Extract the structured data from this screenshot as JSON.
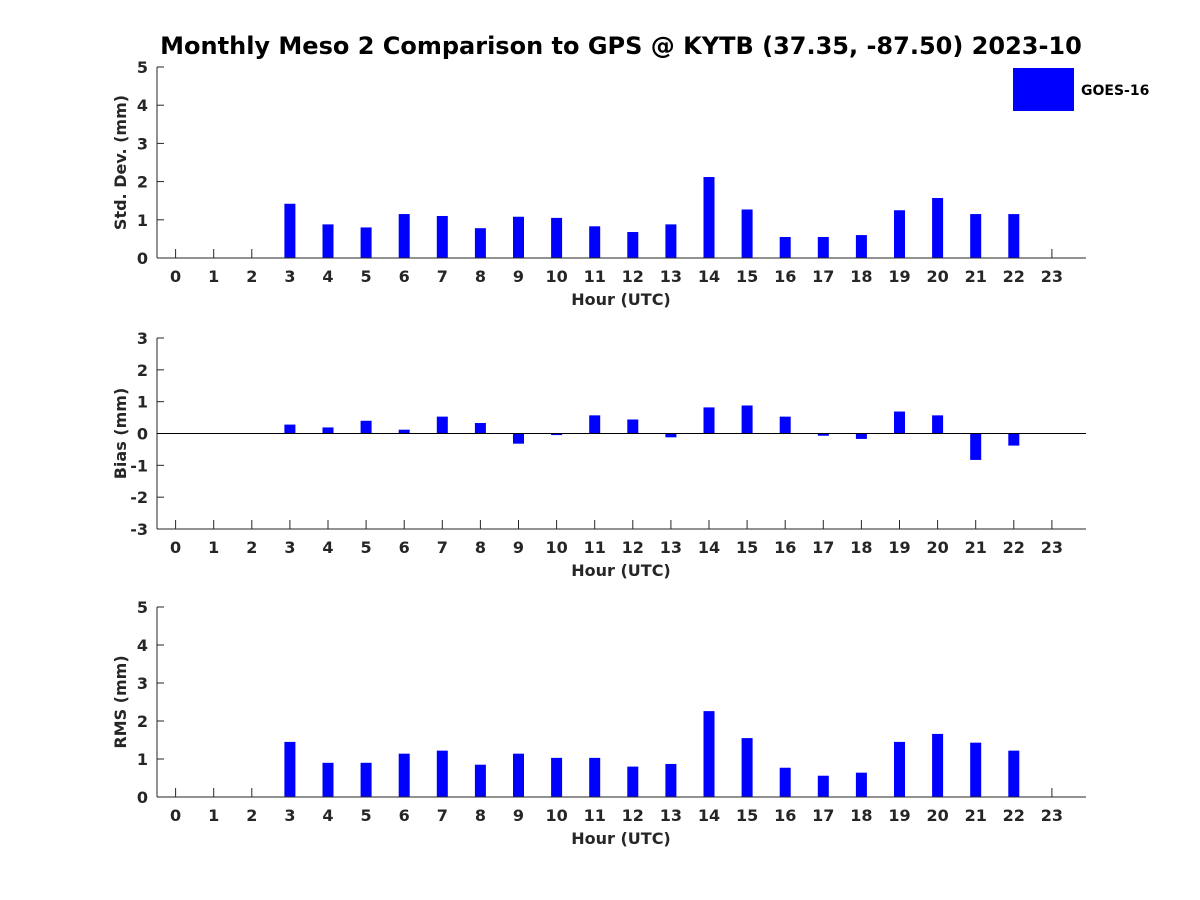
{
  "title": "Monthly Meso 2 Comparison to GPS @ KYTB (37.35, -87.50) 2023-10",
  "legend": {
    "label": "GOES-16",
    "color": "#0000ff"
  },
  "chart_data": [
    {
      "type": "bar",
      "panel": "std",
      "ylabel": "Std. Dev. (mm)",
      "xlabel": "Hour (UTC)",
      "ylim": [
        0,
        5
      ],
      "yticks": [
        "0",
        "1",
        "2",
        "3",
        "4",
        "5"
      ],
      "categories": [
        "0",
        "1",
        "2",
        "3",
        "4",
        "5",
        "6",
        "7",
        "8",
        "9",
        "10",
        "11",
        "12",
        "13",
        "14",
        "15",
        "16",
        "17",
        "18",
        "19",
        "20",
        "21",
        "22",
        "23"
      ],
      "series": [
        {
          "name": "GOES-16",
          "values": [
            null,
            null,
            null,
            1.42,
            0.88,
            0.8,
            1.15,
            1.1,
            0.78,
            1.08,
            1.05,
            0.83,
            0.68,
            0.88,
            2.12,
            1.27,
            0.55,
            0.55,
            0.6,
            1.25,
            1.57,
            1.15,
            1.15,
            null
          ]
        }
      ]
    },
    {
      "type": "bar",
      "panel": "bias",
      "ylabel": "Bias (mm)",
      "xlabel": "Hour (UTC)",
      "ylim": [
        -3,
        3
      ],
      "yticks": [
        "-3",
        "-2",
        "-1",
        "0",
        "1",
        "2",
        "3"
      ],
      "categories": [
        "0",
        "1",
        "2",
        "3",
        "4",
        "5",
        "6",
        "7",
        "8",
        "9",
        "10",
        "11",
        "12",
        "13",
        "14",
        "15",
        "16",
        "17",
        "18",
        "19",
        "20",
        "21",
        "22",
        "23"
      ],
      "series": [
        {
          "name": "GOES-16",
          "values": [
            null,
            null,
            null,
            0.28,
            0.19,
            0.4,
            0.12,
            0.53,
            0.33,
            -0.32,
            -0.05,
            0.57,
            0.44,
            -0.12,
            0.82,
            0.88,
            0.53,
            -0.07,
            -0.17,
            0.69,
            0.57,
            -0.83,
            -0.38,
            null
          ]
        }
      ]
    },
    {
      "type": "bar",
      "panel": "rms",
      "ylabel": "RMS (mm)",
      "xlabel": "Hour (UTC)",
      "ylim": [
        0,
        5
      ],
      "yticks": [
        "0",
        "1",
        "2",
        "3",
        "4",
        "5"
      ],
      "categories": [
        "0",
        "1",
        "2",
        "3",
        "4",
        "5",
        "6",
        "7",
        "8",
        "9",
        "10",
        "11",
        "12",
        "13",
        "14",
        "15",
        "16",
        "17",
        "18",
        "19",
        "20",
        "21",
        "22",
        "23"
      ],
      "series": [
        {
          "name": "GOES-16",
          "values": [
            null,
            null,
            null,
            1.45,
            0.9,
            0.9,
            1.14,
            1.22,
            0.85,
            1.14,
            1.03,
            1.03,
            0.8,
            0.87,
            2.26,
            1.55,
            0.77,
            0.56,
            0.64,
            1.45,
            1.66,
            1.43,
            1.22,
            null
          ]
        }
      ]
    }
  ]
}
